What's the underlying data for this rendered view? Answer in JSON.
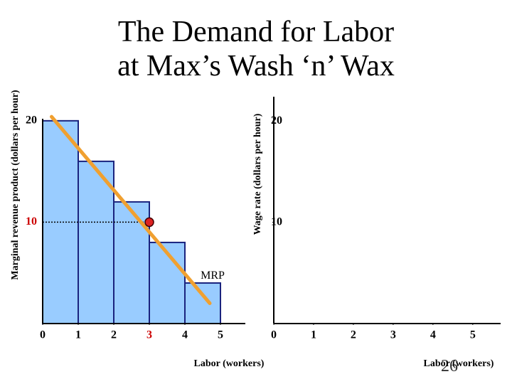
{
  "title_lines": [
    "The Demand for Labor",
    "at Max’s Wash ‘n’ Wax"
  ],
  "slide_number": "26",
  "chart_data": [
    {
      "type": "bar",
      "ylabel": "Marginal revenue product (dollars per hour)",
      "xlabel": "Labor (workers)",
      "x": [
        1,
        2,
        3,
        4,
        5
      ],
      "values": [
        20,
        16,
        12,
        8,
        4
      ],
      "color": "#99ccff",
      "xlim": [
        0,
        5.7
      ],
      "xticks": [
        0,
        1,
        2,
        3,
        4,
        5
      ],
      "ylim": [
        0,
        20.2
      ],
      "yticks": [
        10,
        20
      ],
      "line": {
        "name": "MRP",
        "x": [
          0.25,
          4.7
        ],
        "values": [
          20.4,
          2
        ],
        "color": "#f0a030"
      },
      "point": {
        "x": 3,
        "y": 10,
        "color": "#dd2222"
      }
    },
    {
      "type": "line",
      "ylabel": "Wage rate (dollars per hour)",
      "xlabel": "Labor (workers)",
      "series": [],
      "xlim": [
        0,
        5.7
      ],
      "xticks": [
        0,
        1,
        2,
        3,
        4,
        5
      ],
      "ylim": [
        0,
        22.4
      ],
      "yticks": [
        10,
        20
      ]
    }
  ]
}
